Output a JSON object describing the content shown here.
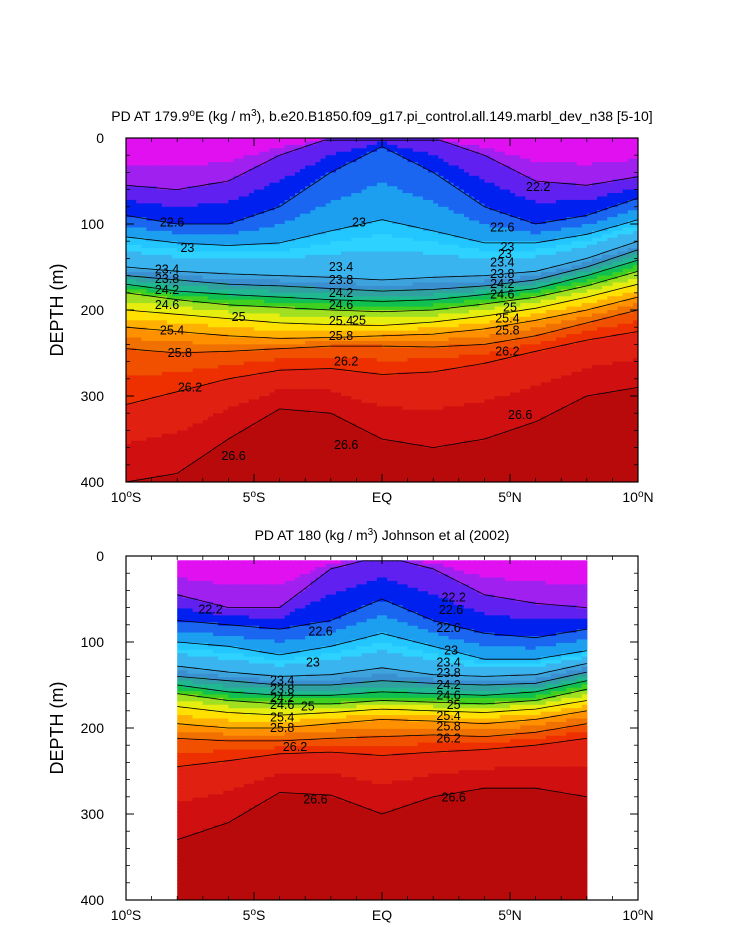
{
  "chart_data": [
    {
      "type": "heatmap",
      "title_prefix": "PD AT 179.9",
      "title_deg": "o",
      "title_mid": "E (kg / m",
      "title_sup": "3",
      "title_suffix": "), b.e20.B1850.f09_g17.pi_control.all.149.marbl_dev_n38 [5-10]",
      "ylabel": "DEPTH (m)",
      "y_ticks": [
        "0",
        "100",
        "200",
        "300",
        "400"
      ],
      "x_ticks": [
        {
          "num": "10",
          "deg": "o",
          "hem": "S"
        },
        {
          "num": "5",
          "deg": "o",
          "hem": "S"
        },
        {
          "num": "EQ",
          "deg": "",
          "hem": ""
        },
        {
          "num": "5",
          "deg": "o",
          "hem": "N"
        },
        {
          "num": "10",
          "deg": "o",
          "hem": "N"
        }
      ],
      "xlim": [
        -10,
        10
      ],
      "ylim": [
        0,
        400
      ],
      "data_lat_range": [
        -10,
        10
      ],
      "contour_interval": 0.2,
      "levels_labeled": [
        22.2,
        22.6,
        23,
        23.4,
        23.8,
        24.2,
        24.6,
        25,
        25.4,
        25.8,
        26.2,
        26.6
      ],
      "isopycnal_depths": {
        "lat": [
          -10,
          -8,
          -6,
          -4,
          -2,
          0,
          2,
          4,
          6,
          8,
          10
        ],
        "22.2": [
          55,
          60,
          50,
          20,
          0,
          0,
          0,
          20,
          50,
          55,
          45
        ],
        "22.6": [
          90,
          100,
          100,
          80,
          40,
          10,
          40,
          80,
          100,
          90,
          70
        ],
        "23.0": [
          115,
          122,
          125,
          122,
          108,
          95,
          108,
          122,
          122,
          112,
          95
        ],
        "23.4": [
          150,
          155,
          158,
          160,
          162,
          165,
          162,
          160,
          155,
          140,
          120
        ],
        "23.8": [
          160,
          165,
          170,
          172,
          175,
          178,
          176,
          172,
          165,
          150,
          130
        ],
        "24.2": [
          170,
          178,
          182,
          185,
          188,
          190,
          188,
          182,
          175,
          160,
          142
        ],
        "24.6": [
          180,
          188,
          194,
          197,
          200,
          202,
          200,
          193,
          185,
          172,
          155
        ],
        "25.0": [
          200,
          205,
          210,
          215,
          217,
          218,
          214,
          207,
          198,
          185,
          170
        ],
        "25.4": [
          220,
          225,
          230,
          233,
          232,
          230,
          228,
          222,
          212,
          200,
          185
        ],
        "25.8": [
          245,
          250,
          248,
          245,
          242,
          242,
          243,
          240,
          230,
          215,
          200
        ],
        "26.2": [
          310,
          295,
          280,
          270,
          268,
          275,
          272,
          262,
          248,
          235,
          225
        ],
        "26.6": [
          400,
          390,
          350,
          315,
          320,
          350,
          360,
          350,
          330,
          300,
          290
        ]
      },
      "labels": [
        {
          "text": "22.2",
          "lat": 6.1,
          "depth": 57
        },
        {
          "text": "22.6",
          "lat": -8.2,
          "depth": 98
        },
        {
          "text": "22.6",
          "lat": 4.7,
          "depth": 104
        },
        {
          "text": "23",
          "lat": -7.6,
          "depth": 128
        },
        {
          "text": "23",
          "lat": -0.9,
          "depth": 98
        },
        {
          "text": "23",
          "lat": 4.9,
          "depth": 127
        },
        {
          "text": "23.4",
          "lat": -8.4,
          "depth": 153
        },
        {
          "text": "23.8",
          "lat": -8.4,
          "depth": 164
        },
        {
          "text": "24.2",
          "lat": -8.4,
          "depth": 177
        },
        {
          "text": "24.6",
          "lat": -8.4,
          "depth": 194
        },
        {
          "text": "25",
          "lat": -5.6,
          "depth": 208
        },
        {
          "text": "25.4",
          "lat": -8.2,
          "depth": 224
        },
        {
          "text": "25.8",
          "lat": -7.9,
          "depth": 250
        },
        {
          "text": "26.2",
          "lat": -7.5,
          "depth": 290
        },
        {
          "text": "26.6",
          "lat": -5.8,
          "depth": 370
        },
        {
          "text": "23.4",
          "lat": -1.6,
          "depth": 150
        },
        {
          "text": "23.8",
          "lat": -1.6,
          "depth": 165
        },
        {
          "text": "24.2",
          "lat": -1.6,
          "depth": 180
        },
        {
          "text": "24.6",
          "lat": -1.6,
          "depth": 194
        },
        {
          "text": "25",
          "lat": -0.9,
          "depth": 212
        },
        {
          "text": "25.4",
          "lat": -1.6,
          "depth": 213
        },
        {
          "text": "25.8",
          "lat": -1.6,
          "depth": 230
        },
        {
          "text": "26.2",
          "lat": -1.4,
          "depth": 260
        },
        {
          "text": "26.6",
          "lat": -1.4,
          "depth": 357
        },
        {
          "text": "23",
          "lat": 4.8,
          "depth": 135
        },
        {
          "text": "23.4",
          "lat": 4.7,
          "depth": 145
        },
        {
          "text": "23.8",
          "lat": 4.7,
          "depth": 158
        },
        {
          "text": "24.2",
          "lat": 4.7,
          "depth": 170
        },
        {
          "text": "24.6",
          "lat": 4.7,
          "depth": 182
        },
        {
          "text": "25",
          "lat": 5.0,
          "depth": 197
        },
        {
          "text": "25.4",
          "lat": 4.9,
          "depth": 210
        },
        {
          "text": "25.8",
          "lat": 4.9,
          "depth": 224
        },
        {
          "text": "26.2",
          "lat": 4.9,
          "depth": 248
        },
        {
          "text": "26.6",
          "lat": 5.4,
          "depth": 322
        }
      ]
    },
    {
      "type": "heatmap",
      "title_prefix": "PD AT 180 (kg / m",
      "title_deg": "",
      "title_mid": "",
      "title_sup": "3",
      "title_suffix": ") Johnson et al (2002)",
      "ylabel": "DEPTH (m)",
      "y_ticks": [
        "0",
        "100",
        "200",
        "300",
        "400"
      ],
      "x_ticks": [
        {
          "num": "10",
          "deg": "o",
          "hem": "S"
        },
        {
          "num": "5",
          "deg": "o",
          "hem": "S"
        },
        {
          "num": "EQ",
          "deg": "",
          "hem": ""
        },
        {
          "num": "5",
          "deg": "o",
          "hem": "N"
        },
        {
          "num": "10",
          "deg": "o",
          "hem": "N"
        }
      ],
      "xlim": [
        -10,
        10
      ],
      "ylim": [
        0,
        400
      ],
      "data_lat_range": [
        -8,
        8
      ],
      "data_depth_top": 5,
      "contour_interval": 0.2,
      "levels_labeled": [
        22.2,
        22.6,
        23,
        23.4,
        23.8,
        24.2,
        24.6,
        25,
        25.4,
        25.8,
        26.2,
        26.6
      ],
      "isopycnal_depths": {
        "lat": [
          -8,
          -6,
          -4,
          -2,
          0,
          2,
          4,
          6,
          8
        ],
        "22.2": [
          45,
          60,
          60,
          15,
          0,
          15,
          45,
          55,
          60
        ],
        "22.6": [
          75,
          80,
          85,
          75,
          50,
          75,
          90,
          95,
          85
        ],
        "23.0": [
          100,
          105,
          115,
          105,
          90,
          105,
          120,
          120,
          110
        ],
        "23.4": [
          128,
          135,
          140,
          138,
          130,
          138,
          140,
          138,
          125
        ],
        "23.8": [
          140,
          145,
          150,
          150,
          145,
          148,
          150,
          148,
          135
        ],
        "24.2": [
          150,
          158,
          162,
          162,
          158,
          160,
          162,
          158,
          145
        ],
        "24.6": [
          160,
          168,
          172,
          172,
          168,
          170,
          172,
          168,
          155
        ],
        "25.0": [
          175,
          182,
          185,
          182,
          178,
          180,
          182,
          178,
          168
        ],
        "25.4": [
          195,
          200,
          200,
          195,
          190,
          192,
          195,
          190,
          180
        ],
        "25.8": [
          212,
          215,
          215,
          212,
          210,
          208,
          210,
          205,
          195
        ],
        "26.2": [
          245,
          238,
          230,
          228,
          232,
          228,
          225,
          220,
          212
        ],
        "26.6": [
          330,
          310,
          275,
          278,
          300,
          280,
          270,
          270,
          280
        ]
      },
      "labels": [
        {
          "text": "22.2",
          "lat": -6.7,
          "depth": 62
        },
        {
          "text": "22.6",
          "lat": -2.4,
          "depth": 88
        },
        {
          "text": "22.6",
          "lat": 2.7,
          "depth": 63
        },
        {
          "text": "22.2",
          "lat": 2.8,
          "depth": 48
        },
        {
          "text": "22.6",
          "lat": 2.6,
          "depth": 84
        },
        {
          "text": "23",
          "lat": -2.7,
          "depth": 124
        },
        {
          "text": "23",
          "lat": 2.7,
          "depth": 110
        },
        {
          "text": "23.4",
          "lat": -3.9,
          "depth": 145
        },
        {
          "text": "23.8",
          "lat": -3.9,
          "depth": 155
        },
        {
          "text": "24.2",
          "lat": -3.9,
          "depth": 165
        },
        {
          "text": "24.6",
          "lat": -3.9,
          "depth": 173
        },
        {
          "text": "25",
          "lat": -2.9,
          "depth": 175
        },
        {
          "text": "25.4",
          "lat": -3.9,
          "depth": 188
        },
        {
          "text": "25.8",
          "lat": -3.9,
          "depth": 200
        },
        {
          "text": "26.2",
          "lat": -3.4,
          "depth": 222
        },
        {
          "text": "26.6",
          "lat": -2.6,
          "depth": 283
        },
        {
          "text": "23.4",
          "lat": 2.6,
          "depth": 124
        },
        {
          "text": "23.8",
          "lat": 2.6,
          "depth": 136
        },
        {
          "text": "24.2",
          "lat": 2.6,
          "depth": 150
        },
        {
          "text": "24.6",
          "lat": 2.6,
          "depth": 162
        },
        {
          "text": "25",
          "lat": 2.8,
          "depth": 173
        },
        {
          "text": "25.4",
          "lat": 2.6,
          "depth": 186
        },
        {
          "text": "25.8",
          "lat": 2.6,
          "depth": 198
        },
        {
          "text": "26.2",
          "lat": 2.6,
          "depth": 212
        },
        {
          "text": "26.6",
          "lat": 2.8,
          "depth": 281
        }
      ]
    }
  ],
  "colormap": [
    "#e010f0",
    "#a020f0",
    "#6020f0",
    "#0020f0",
    "#1a66f0",
    "#1d9ff0",
    "#23c6ff",
    "#2ed2ff",
    "#3ab4ee",
    "#3ea2dc",
    "#3a8fd0",
    "#30a0a0",
    "#20b890",
    "#10c050",
    "#40d020",
    "#a0e020",
    "#e6ee10",
    "#ffe000",
    "#ffb000",
    "#ff9000",
    "#f07000",
    "#f05000",
    "#ee3000",
    "#e02010",
    "#d01010",
    "#b80a0a"
  ],
  "color_levels": [
    21.8,
    22.0,
    22.2,
    22.4,
    22.6,
    22.8,
    23.0,
    23.1,
    23.2,
    23.4,
    23.6,
    23.8,
    24.0,
    24.2,
    24.4,
    24.6,
    24.8,
    25.0,
    25.2,
    25.4,
    25.6,
    25.8,
    26.0,
    26.2,
    26.4,
    26.6
  ]
}
